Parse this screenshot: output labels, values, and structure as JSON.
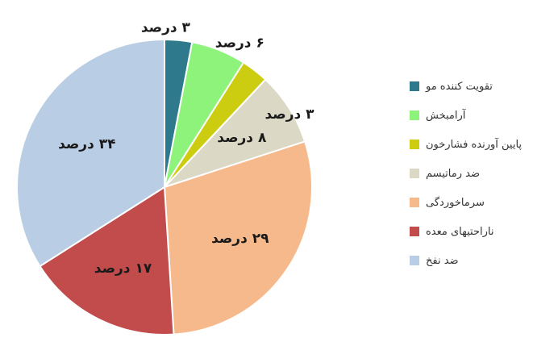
{
  "chart_data": {
    "type": "pie",
    "unit_word": "درصد",
    "slices": [
      {
        "name": "تقویت کننده مو",
        "value": 3,
        "label": "۳ درصد",
        "color": "#2e7a8c"
      },
      {
        "name": "آرامبخش",
        "value": 6,
        "label": "۶ درصد",
        "color": "#8ef37a"
      },
      {
        "name": "پایین آورنده فشارخون",
        "value": 3,
        "label": "۳ درصد",
        "color": "#cccc10"
      },
      {
        "name": "ضد رماتیسم",
        "value": 8,
        "label": "۸ درصد",
        "color": "#dcd8c6"
      },
      {
        "name": "سرماخوردگی",
        "value": 29,
        "label": "۲۹ درصد",
        "color": "#f6b98c"
      },
      {
        "name": "ناراحتیهای معده",
        "value": 17,
        "label": "۱۷ درصد",
        "color": "#c24b4b"
      },
      {
        "name": "ضد نفخ",
        "value": 34,
        "label": "۳۴ درصد",
        "color": "#b9cde4"
      }
    ],
    "legend_position": "right"
  }
}
